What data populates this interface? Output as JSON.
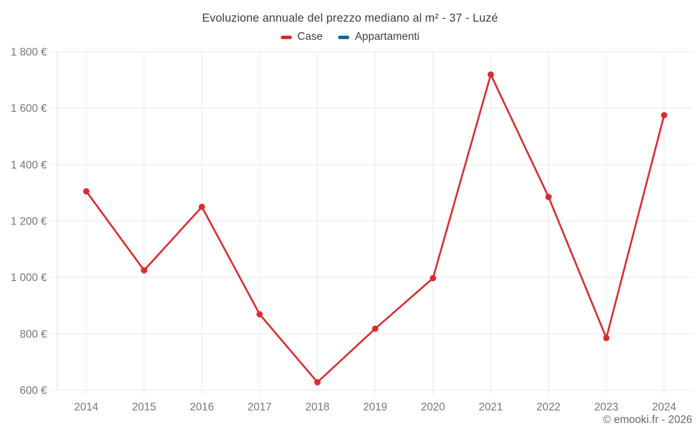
{
  "header": {
    "title": "Evoluzione annuale del prezzo mediano al m² - 37 - Luzé"
  },
  "legend": {
    "items": [
      {
        "label": "Case",
        "color": "#db2b2e"
      },
      {
        "label": "Appartamenti",
        "color": "#1569a0"
      }
    ]
  },
  "footer": {
    "copyright": "© emooki.fr - 2026"
  },
  "chart_data": {
    "type": "line",
    "title": "Evoluzione annuale del prezzo mediano al m² - 37 - Luzé",
    "categories": [
      "2014",
      "2015",
      "2016",
      "2017",
      "2018",
      "2019",
      "2020",
      "2021",
      "2022",
      "2023",
      "2024"
    ],
    "series": [
      {
        "name": "Case",
        "color": "#db2b2e",
        "values": [
          1305,
          1025,
          1250,
          869,
          628,
          818,
          997,
          1719,
          1285,
          785,
          1575
        ]
      },
      {
        "name": "Appartamenti",
        "color": "#1569a0",
        "values": []
      }
    ],
    "xlabel": "",
    "ylabel": "",
    "ylim": [
      600,
      1800
    ],
    "ytick_step": 200,
    "ytick_labels": [
      "600 €",
      "800 €",
      "1 000 €",
      "1 200 €",
      "1 400 €",
      "1 600 €",
      "1 800 €"
    ],
    "grid": true,
    "legend_position": "top",
    "colors": {
      "grid": "#e8e8e8",
      "axis": "#dddddd",
      "tick_label": "#757575",
      "title": "#3f3f3f"
    }
  }
}
